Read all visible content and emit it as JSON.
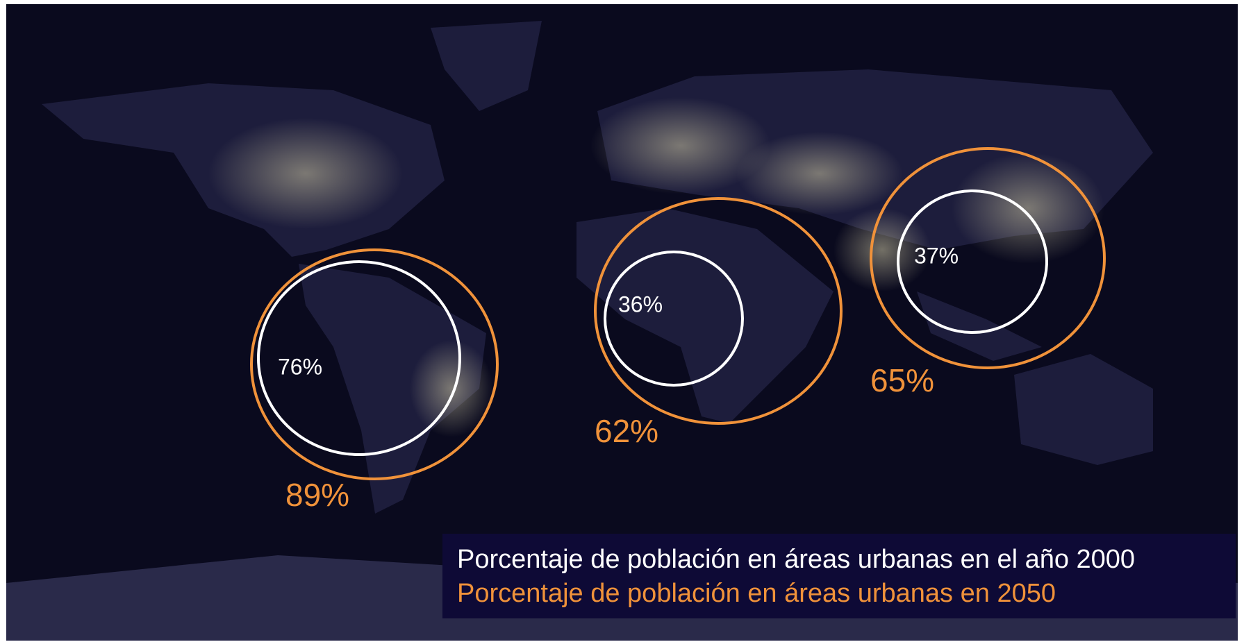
{
  "regions": [
    {
      "urban_2000": "76%",
      "urban_2050": "89%"
    },
    {
      "urban_2000": "36%",
      "urban_2050": "62%"
    },
    {
      "urban_2000": "37%",
      "urban_2050": "65%"
    }
  ],
  "legend": {
    "line_2000": "Porcentaje de población en áreas urbanas en el año 2000",
    "line_2050": "Porcentaje de población en áreas urbanas en 2050"
  }
}
